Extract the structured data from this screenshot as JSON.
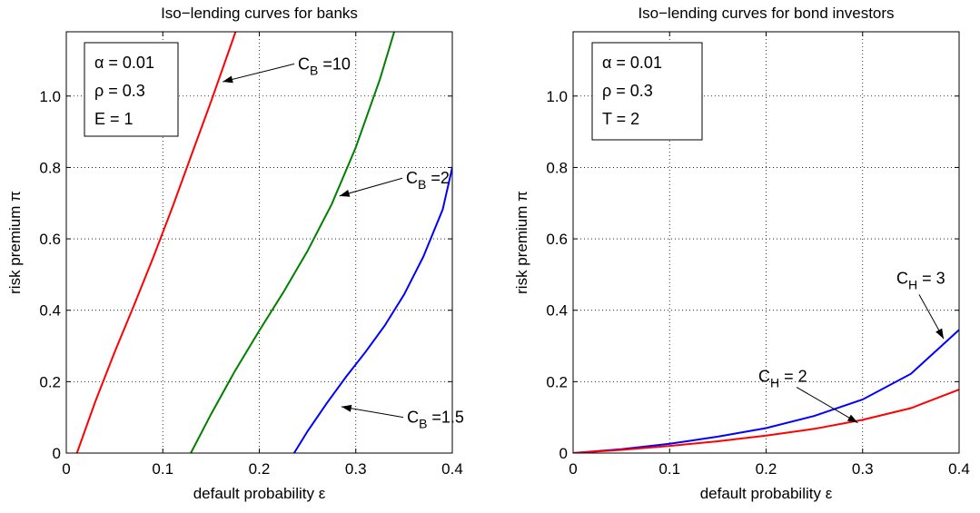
{
  "chart_data": [
    {
      "type": "line",
      "title": "Iso−lending curves for banks",
      "xlabel": "default probability ε",
      "ylabel": "risk premium π",
      "xlim": [
        0,
        0.4
      ],
      "ylim": [
        0,
        1.18
      ],
      "xticks": [
        "0",
        "0.1",
        "0.2",
        "0.3",
        "0.4"
      ],
      "yticks": [
        "0",
        "0.2",
        "0.4",
        "0.6",
        "0.8",
        "1.0"
      ],
      "grid": true,
      "params": [
        "α = 0.01",
        "ρ = 0.3",
        "E = 1"
      ],
      "series": [
        {
          "color": "#ff0000",
          "x": [
            0.011,
            0.03,
            0.05,
            0.07,
            0.09,
            0.11,
            0.13,
            0.15,
            0.17,
            0.178
          ],
          "y": [
            0.0,
            0.144,
            0.282,
            0.413,
            0.547,
            0.689,
            0.837,
            0.985,
            1.138,
            1.2
          ]
        },
        {
          "color": "#008000",
          "x": [
            0.129,
            0.15,
            0.175,
            0.2,
            0.225,
            0.25,
            0.275,
            0.3,
            0.325,
            0.342
          ],
          "y": [
            0.0,
            0.109,
            0.231,
            0.343,
            0.451,
            0.566,
            0.697,
            0.856,
            1.047,
            1.2
          ]
        },
        {
          "color": "#0000ff",
          "x": [
            0.236,
            0.25,
            0.27,
            0.29,
            0.31,
            0.33,
            0.35,
            0.37,
            0.39,
            0.4
          ],
          "y": [
            0.0,
            0.061,
            0.14,
            0.214,
            0.283,
            0.357,
            0.444,
            0.55,
            0.682,
            0.8
          ]
        }
      ],
      "annotations": [
        {
          "main": "C",
          "sub": "B",
          "tail": " =10",
          "x": 0.24,
          "y": 1.09,
          "arrow_to": [
            0.162,
            1.04
          ]
        },
        {
          "main": "C",
          "sub": "B",
          "tail": " =2",
          "x": 0.352,
          "y": 0.77,
          "arrow_to": [
            0.283,
            0.72
          ]
        },
        {
          "main": "C",
          "sub": "B",
          "tail": " =1.5",
          "x": 0.353,
          "y": 0.1,
          "arrow_to": [
            0.285,
            0.13
          ]
        }
      ]
    },
    {
      "type": "line",
      "title": "Iso−lending curves for bond investors",
      "xlabel": "default probability ε",
      "ylabel": "risk premium π",
      "xlim": [
        0,
        0.4
      ],
      "ylim": [
        0,
        1.18
      ],
      "xticks": [
        "0",
        "0.1",
        "0.2",
        "0.3",
        "0.4"
      ],
      "yticks": [
        "0",
        "0.2",
        "0.4",
        "0.6",
        "0.8",
        "1.0"
      ],
      "grid": true,
      "params": [
        "α = 0.01",
        "ρ = 0.3",
        "T = 2"
      ],
      "series": [
        {
          "color": "#0000ff",
          "x": [
            0.0,
            0.05,
            0.1,
            0.15,
            0.2,
            0.25,
            0.3,
            0.35,
            0.4
          ],
          "y": [
            0.0,
            0.011,
            0.026,
            0.046,
            0.07,
            0.104,
            0.15,
            0.222,
            0.345
          ]
        },
        {
          "color": "#ff0000",
          "x": [
            0.0,
            0.05,
            0.1,
            0.15,
            0.2,
            0.25,
            0.3,
            0.35,
            0.4
          ],
          "y": [
            0.0,
            0.009,
            0.02,
            0.033,
            0.049,
            0.068,
            0.093,
            0.126,
            0.178
          ]
        }
      ],
      "annotations": [
        {
          "main": "C",
          "sub": "H",
          "tail": " = 3",
          "x": 0.335,
          "y": 0.49,
          "arrow_to": [
            0.384,
            0.32
          ]
        },
        {
          "main": "C",
          "sub": "H",
          "tail": " = 2",
          "x": 0.192,
          "y": 0.215,
          "arrow_to": [
            0.295,
            0.085
          ]
        }
      ]
    }
  ]
}
